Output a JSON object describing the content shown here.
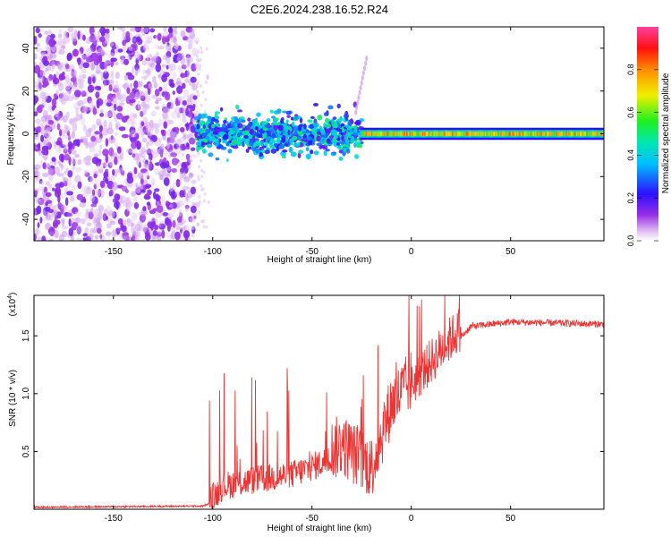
{
  "title": "C2E6.2024.238.16.52.R24",
  "chart_data": [
    {
      "type": "heatmap",
      "name": "spectrogram",
      "xlabel": "Height of straight line (km)",
      "ylabel": "Frequency (Hz)",
      "xlim": [
        -190,
        97
      ],
      "ylim": [
        -50,
        50
      ],
      "xticks": [
        -150,
        -100,
        -50,
        0,
        50
      ],
      "yticks": [
        -40,
        -20,
        0,
        20,
        40
      ],
      "colorbar": {
        "label": "Normalized spectral amplitude",
        "range": [
          0,
          1
        ],
        "ticks": [
          0.0,
          0.2,
          0.4,
          0.6,
          0.8
        ]
      },
      "regions": [
        {
          "x_range": [
            -190,
            -108
          ],
          "description_value": "noise",
          "amplitude": 0.15
        },
        {
          "x_range": [
            -108,
            -25
          ],
          "center_freq": 0,
          "spread_hz": 6,
          "amplitude": 0.45
        },
        {
          "x_range": [
            -25,
            97
          ],
          "center_freq": 0,
          "spread_hz": 2,
          "amplitude": 0.8
        }
      ]
    },
    {
      "type": "line",
      "name": "snr",
      "xlabel": "Height of straight line (km)",
      "ylabel": "SNR (10 * v/v)",
      "y_scale_label": "(x10",
      "y_scale_exp": "4",
      "xlim": [
        -190,
        97
      ],
      "ylim": [
        0,
        1.85
      ],
      "xticks": [
        -150,
        -100,
        -50,
        0,
        50
      ],
      "yticks": [
        0.5,
        1.0,
        1.5
      ],
      "line_color": "#ee3333",
      "key_points": [
        {
          "x": -190,
          "y": 0.01
        },
        {
          "x": -105,
          "y": 0.02
        },
        {
          "x": -100,
          "y": 0.05
        },
        {
          "x": -95,
          "y": 0.15
        },
        {
          "x": -80,
          "y": 0.2
        },
        {
          "x": -60,
          "y": 0.25
        },
        {
          "x": -45,
          "y": 0.35
        },
        {
          "x": -35,
          "y": 0.45
        },
        {
          "x": -20,
          "y": 0.25
        },
        {
          "x": -10,
          "y": 0.8
        },
        {
          "x": 0,
          "y": 1.0
        },
        {
          "x": 10,
          "y": 1.2
        },
        {
          "x": 20,
          "y": 1.4
        },
        {
          "x": 30,
          "y": 1.58
        },
        {
          "x": 50,
          "y": 1.62
        },
        {
          "x": 97,
          "y": 1.6
        }
      ]
    }
  ]
}
